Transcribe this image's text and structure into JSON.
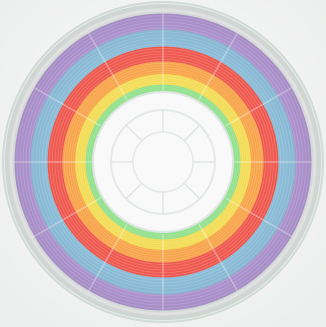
{
  "image": {
    "subject": "filament-spool",
    "background_color": "#f4f5f4",
    "spool_rim_color": "#dfe6e2",
    "hub_color": "#f8f9f8",
    "rings": [
      {
        "name": "purple",
        "color": "#b69ad8"
      },
      {
        "name": "blue",
        "color": "#8ec0dc"
      },
      {
        "name": "red",
        "color": "#ef5a50"
      },
      {
        "name": "orange",
        "color": "#f7a44a"
      },
      {
        "name": "yellow",
        "color": "#f3dc55"
      },
      {
        "name": "green",
        "color": "#8fe08a"
      }
    ]
  }
}
